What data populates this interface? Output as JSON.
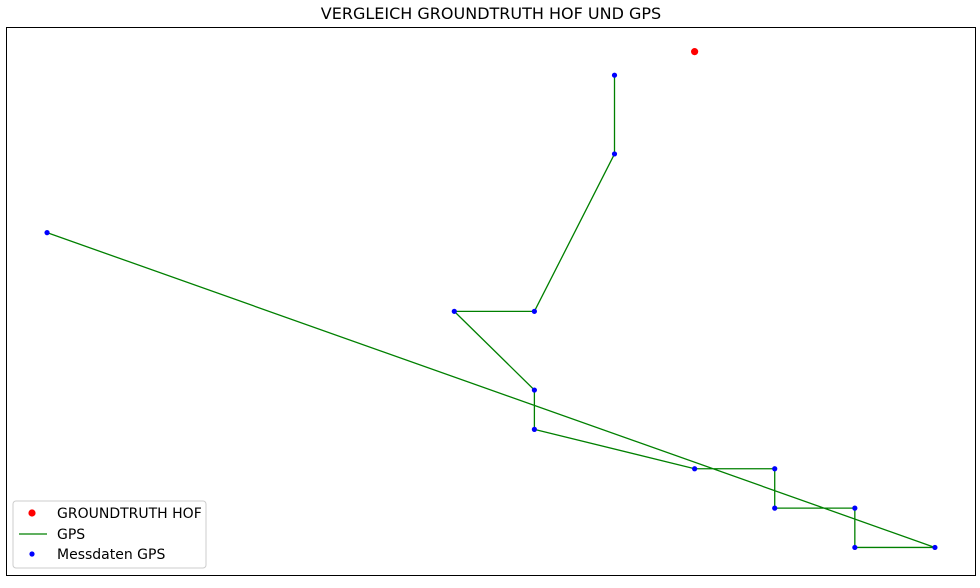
{
  "chart_data": {
    "type": "scatter",
    "title": "VERGLEICH GROUNDTRUTH HOF UND GPS",
    "xlabel": "",
    "ylabel": "",
    "axes_ticks_visible": false,
    "grid": false,
    "legend_position": "lower-left",
    "xlim": [
      0,
      14.5
    ],
    "ylim": [
      -0.7,
      13.2
    ],
    "series": [
      {
        "name": "GROUNDTRUTH HOF",
        "kind": "scatter",
        "color": "#ff0000",
        "points": [
          [
            10.3,
            12.6
          ]
        ]
      },
      {
        "name": "GPS",
        "kind": "line",
        "color": "#008000",
        "points": [
          [
            9.1,
            12.0
          ],
          [
            9.1,
            10.0
          ],
          [
            7.9,
            6.0
          ],
          [
            6.7,
            6.0
          ],
          [
            7.9,
            4.0
          ],
          [
            7.9,
            3.0
          ],
          [
            10.3,
            2.0
          ],
          [
            11.5,
            2.0
          ],
          [
            11.5,
            1.0
          ],
          [
            12.7,
            1.0
          ],
          [
            12.7,
            0.0
          ],
          [
            13.9,
            0.0
          ],
          [
            0.6,
            8.0
          ]
        ]
      },
      {
        "name": "Messdaten GPS",
        "kind": "scatter",
        "color": "#0000ff",
        "points": [
          [
            9.1,
            12.0
          ],
          [
            9.1,
            10.0
          ],
          [
            0.6,
            8.0
          ],
          [
            6.7,
            6.0
          ],
          [
            7.9,
            6.0
          ],
          [
            7.9,
            4.0
          ],
          [
            7.9,
            3.0
          ],
          [
            10.3,
            2.0
          ],
          [
            11.5,
            2.0
          ],
          [
            11.5,
            1.0
          ],
          [
            12.7,
            1.0
          ],
          [
            12.7,
            0.0
          ],
          [
            13.9,
            0.0
          ]
        ]
      }
    ]
  }
}
